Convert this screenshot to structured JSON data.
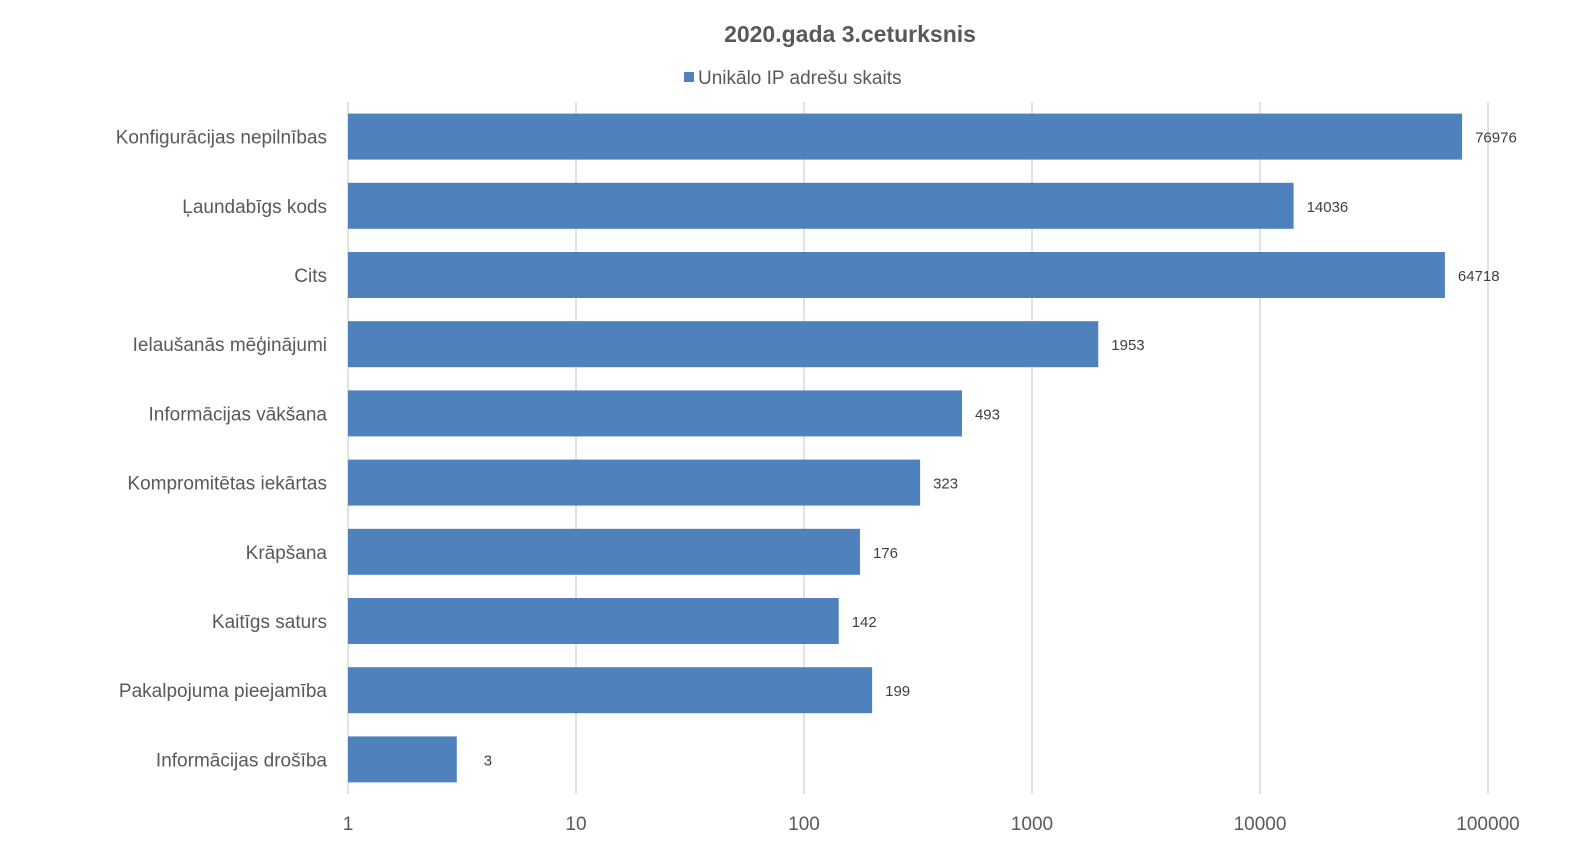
{
  "chart_data": {
    "type": "bar",
    "orientation": "horizontal",
    "title": "2020.gada 3.ceturksnis",
    "xscale": "log",
    "xlim": [
      1,
      100000
    ],
    "xticks": [
      "1",
      "10",
      "100",
      "1000",
      "10000",
      "100000"
    ],
    "grid": true,
    "legend_position": "top",
    "categories": [
      "Konfigurācijas nepilnības",
      "Ļaundabīgs kods",
      "Cits",
      "Ielaušanās mēģinājumi",
      "Informācijas vākšana",
      "Kompromitētas iekārtas",
      "Krāpšana",
      "Kaitīgs saturs",
      "Pakalpojuma pieejamība",
      "Informācijas drošība"
    ],
    "series": [
      {
        "name": "Unikālo IP adrešu skaits",
        "color": "#4f81bd",
        "values": [
          76976,
          14036,
          64718,
          1953,
          493,
          323,
          176,
          142,
          199,
          3
        ]
      }
    ]
  }
}
